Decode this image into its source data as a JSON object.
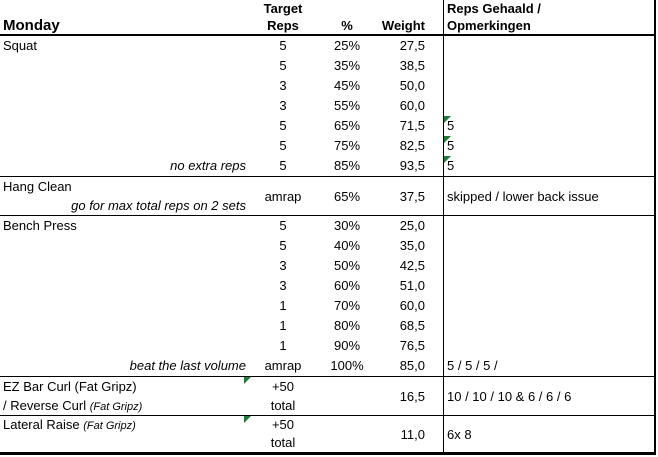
{
  "colors": {
    "flag_triangle_green": "#1f7a33",
    "border_black": "#000000"
  },
  "header": {
    "day": "Monday",
    "target_line1": "Target",
    "target_line2": "Reps",
    "percent": "%",
    "weight": "Weight",
    "comments_line1": "Reps Gehaald /",
    "comments_line2": "Opmerkingen"
  },
  "sections": {
    "squat": {
      "name": "Squat",
      "note": "no extra reps",
      "rows": [
        {
          "reps": "5",
          "pct": "25%",
          "weight": "27,5",
          "result": ""
        },
        {
          "reps": "5",
          "pct": "35%",
          "weight": "38,5",
          "result": ""
        },
        {
          "reps": "3",
          "pct": "45%",
          "weight": "50,0",
          "result": ""
        },
        {
          "reps": "3",
          "pct": "55%",
          "weight": "60,0",
          "result": ""
        },
        {
          "reps": "5",
          "pct": "65%",
          "weight": "71,5",
          "result": "5"
        },
        {
          "reps": "5",
          "pct": "75%",
          "weight": "82,5",
          "result": "5"
        },
        {
          "reps": "5",
          "pct": "85%",
          "weight": "93,5",
          "result": "5"
        }
      ]
    },
    "hang_clean": {
      "name": "Hang Clean",
      "note": "go for max total reps on 2 sets",
      "reps": "amrap",
      "pct": "65%",
      "weight": "37,5",
      "result": "skipped / lower back issue"
    },
    "bench_press": {
      "name": "Bench Press",
      "note": "beat the last volume",
      "rows": [
        {
          "reps": "5",
          "pct": "30%",
          "weight": "25,0",
          "result": ""
        },
        {
          "reps": "5",
          "pct": "40%",
          "weight": "35,0",
          "result": ""
        },
        {
          "reps": "3",
          "pct": "50%",
          "weight": "42,5",
          "result": ""
        },
        {
          "reps": "3",
          "pct": "60%",
          "weight": "51,0",
          "result": ""
        },
        {
          "reps": "1",
          "pct": "70%",
          "weight": "60,0",
          "result": ""
        },
        {
          "reps": "1",
          "pct": "80%",
          "weight": "68,5",
          "result": ""
        },
        {
          "reps": "1",
          "pct": "90%",
          "weight": "76,5",
          "result": ""
        },
        {
          "reps": "amrap",
          "pct": "100%",
          "weight": "85,0",
          "result": "5 / 5 / 5 /"
        }
      ]
    },
    "ez_bar_curl": {
      "name_line1": "EZ Bar Curl (Fat Gripz)",
      "name_line2_main": "/ Reverse Curl ",
      "name_line2_italic": "(Fat Gripz)",
      "reps_line1": "+50",
      "reps_line2": "total",
      "weight": "16,5",
      "result": "10 / 10 / 10 & 6 / 6 / 6"
    },
    "lateral_raise": {
      "name_main": "Lateral Raise ",
      "name_italic": "(Fat Gripz)",
      "reps_line1": "+50",
      "reps_line2": "total",
      "weight": "11,0",
      "result": "6x 8"
    }
  }
}
